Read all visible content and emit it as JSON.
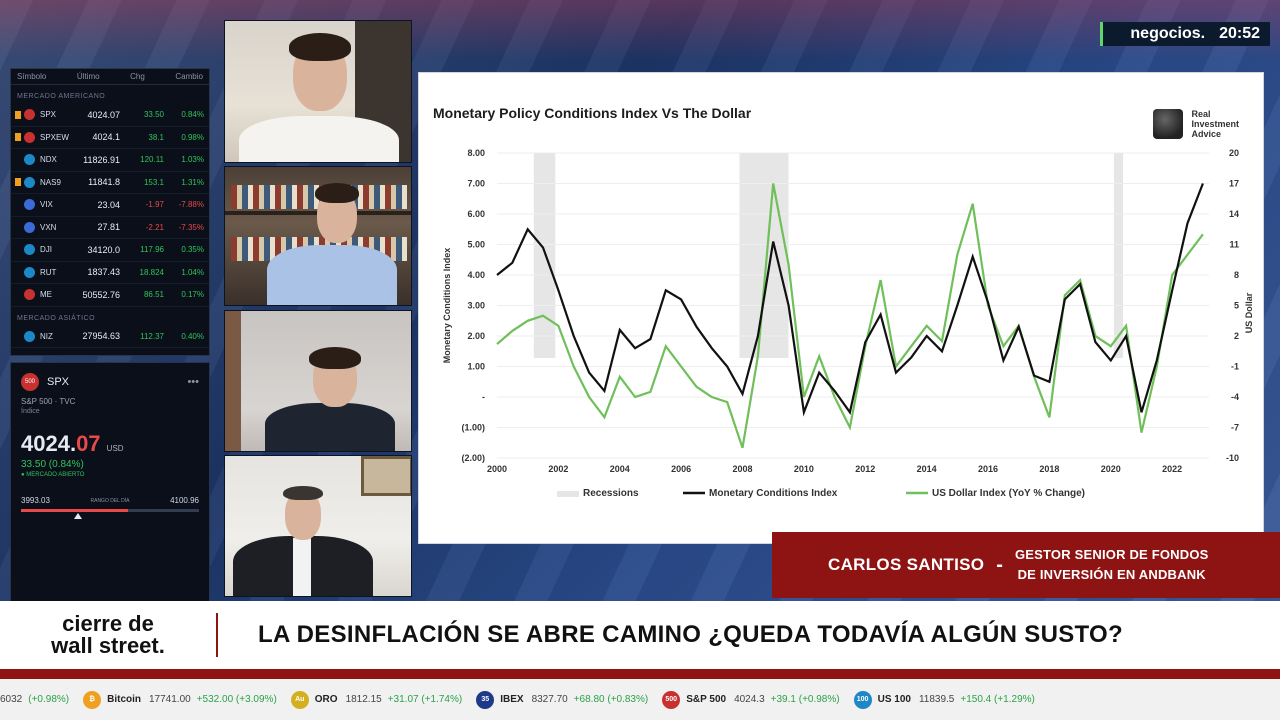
{
  "brand": {
    "name": "negocios.",
    "time": "20:52"
  },
  "tickers": {
    "headers": [
      "Símbolo",
      "Último",
      "Chg",
      "Cambio"
    ],
    "section_us": "MERCADO AMERICANO",
    "section_asia": "MERCADO ASIÁTICO",
    "rows": [
      {
        "sym": "SPX",
        "last": "4024.07",
        "chg": "33.50",
        "pct": "0.84%",
        "dir": "up",
        "flag": "#c7312f",
        "mark": "#f0a020"
      },
      {
        "sym": "SPXEW",
        "last": "4024.1",
        "chg": "38.1",
        "pct": "0.98%",
        "dir": "up",
        "flag": "#c7312f",
        "mark": "#f0a020"
      },
      {
        "sym": "NDX",
        "last": "11826.91",
        "chg": "120.11",
        "pct": "1.03%",
        "dir": "up",
        "flag": "#1e88c7",
        "mark": ""
      },
      {
        "sym": "NAS9",
        "last": "11841.8",
        "chg": "153.1",
        "pct": "1.31%",
        "dir": "up",
        "flag": "#1e88c7",
        "mark": "#f0a020"
      },
      {
        "sym": "VIX",
        "last": "23.04",
        "chg": "-1.97",
        "pct": "-7.88%",
        "dir": "down",
        "flag": "#3b6bd6",
        "mark": ""
      },
      {
        "sym": "VXN",
        "last": "27.81",
        "chg": "-2.21",
        "pct": "-7.35%",
        "dir": "down",
        "flag": "#3b6bd6",
        "mark": ""
      },
      {
        "sym": "DJI",
        "last": "34120.0",
        "chg": "117.96",
        "pct": "0.35%",
        "dir": "up",
        "flag": "#1e88c7",
        "mark": ""
      },
      {
        "sym": "RUT",
        "last": "1837.43",
        "chg": "18.824",
        "pct": "1.04%",
        "dir": "up",
        "flag": "#1e88c7",
        "mark": ""
      },
      {
        "sym": "ME",
        "last": "50552.76",
        "chg": "86.51",
        "pct": "0.17%",
        "dir": "up",
        "flag": "#c7312f",
        "mark": ""
      },
      {
        "sym": "NIZ",
        "last": "27954.63",
        "chg": "112.37",
        "pct": "0.40%",
        "dir": "up",
        "flag": "#1e88c7",
        "mark": ""
      }
    ]
  },
  "quote": {
    "badge": "500",
    "symbol": "SPX",
    "subtitle": "S&P 500 · TVC",
    "type": "Índice",
    "price_int": "4024.",
    "price_dec": "07",
    "currency": "USD",
    "change": "33.50 (0.84%)",
    "status": "● MERCADO ABIERTO",
    "range_low": "3993.03",
    "range_label": "RANGO DEL DÍA",
    "range_high": "4100.96",
    "range_fill": 0.6
  },
  "chart": {
    "title": "Monetary Policy Conditions Index Vs The Dollar",
    "logo_text": [
      "Real",
      "Investment",
      "Advice"
    ],
    "legend": [
      "Recessions",
      "Monetary Conditions Index",
      "US Dollar Index (YoY % Change)"
    ],
    "colors": {
      "mci": "#111111",
      "usd": "#6fbf5a",
      "recession": "#e6e6e6"
    }
  },
  "chart_data": {
    "type": "line",
    "ylabel": "Monetary Conditions Index",
    "y2label": "US Dollar",
    "x_ticks": [
      "2000",
      "2002",
      "2004",
      "2006",
      "2008",
      "2010",
      "2012",
      "2014",
      "2016",
      "2018",
      "2020",
      "2022"
    ],
    "y_ticks": [
      "8.00",
      "7.00",
      "6.00",
      "5.00",
      "4.00",
      "3.00",
      "2.00",
      "1.00",
      "-",
      "(1.00)",
      "(2.00)"
    ],
    "y2_ticks": [
      "20",
      "17",
      "14",
      "11",
      "8",
      "5",
      "2",
      "-1",
      "-4",
      "-7",
      "-10"
    ],
    "ylim": [
      -2,
      8
    ],
    "y2lim": [
      -10,
      20
    ],
    "xlim": [
      2000,
      2023.2
    ],
    "recessions": [
      [
        2001.2,
        2001.9
      ],
      [
        2007.9,
        2009.5
      ],
      [
        2020.1,
        2020.4
      ]
    ],
    "series": [
      {
        "name": "Monetary Conditions Index",
        "x": [
          2000,
          2000.5,
          2001,
          2001.5,
          2002,
          2002.5,
          2003,
          2003.5,
          2004,
          2004.5,
          2005,
          2005.5,
          2006,
          2006.5,
          2007,
          2007.5,
          2008,
          2008.5,
          2009,
          2009.5,
          2010,
          2010.5,
          2011,
          2011.5,
          2012,
          2012.5,
          2013,
          2013.5,
          2014,
          2014.5,
          2015,
          2015.5,
          2016,
          2016.5,
          2017,
          2017.5,
          2018,
          2018.5,
          2019,
          2019.5,
          2020,
          2020.5,
          2021,
          2021.5,
          2022,
          2022.5,
          2023
        ],
        "values": [
          4.0,
          4.4,
          5.5,
          4.9,
          3.5,
          2.0,
          0.8,
          0.2,
          2.2,
          1.6,
          1.9,
          3.5,
          3.2,
          2.3,
          1.6,
          1.0,
          0.1,
          2.0,
          5.1,
          3.0,
          -0.5,
          0.8,
          0.2,
          -0.5,
          1.8,
          2.7,
          0.8,
          1.3,
          2.0,
          1.5,
          3.0,
          4.6,
          3.1,
          1.2,
          2.3,
          0.7,
          0.5,
          3.2,
          3.7,
          1.8,
          1.2,
          2.0,
          -0.5,
          1.2,
          3.5,
          5.7,
          7.0
        ]
      },
      {
        "name": "US Dollar Index (YoY % Change)",
        "x": [
          2000,
          2000.5,
          2001,
          2001.5,
          2002,
          2002.5,
          2003,
          2003.5,
          2004,
          2004.5,
          2005,
          2005.5,
          2006,
          2006.5,
          2007,
          2007.5,
          2008,
          2008.5,
          2009,
          2009.5,
          2010,
          2010.5,
          2011,
          2011.5,
          2012,
          2012.5,
          2013,
          2013.5,
          2014,
          2014.5,
          2015,
          2015.5,
          2016,
          2016.5,
          2017,
          2017.5,
          2018,
          2018.5,
          2019,
          2019.5,
          2020,
          2020.5,
          2021,
          2021.5,
          2022,
          2022.5,
          2023
        ],
        "values": [
          1.2,
          2.5,
          3.5,
          4.0,
          3.0,
          -1.0,
          -4.0,
          -6.0,
          -2.0,
          -4.0,
          -3.5,
          1.0,
          -1.0,
          -3.0,
          -4.0,
          -4.5,
          -9.0,
          0.0,
          17.0,
          9.0,
          -4.0,
          0.0,
          -4.0,
          -7.0,
          1.0,
          7.5,
          -1.0,
          1.0,
          3.0,
          1.5,
          10.0,
          15.0,
          5.0,
          1.0,
          3.0,
          -2.0,
          -6.0,
          6.0,
          7.5,
          2.0,
          1.0,
          3.0,
          -7.5,
          -1.0,
          8.0,
          10.0,
          12.0
        ]
      }
    ]
  },
  "lower_third": {
    "name": "CARLOS SANTISO",
    "dash": "-",
    "role_line1": "GESTOR SENIOR DE FONDOS",
    "role_line2": "DE INVERSIÓN EN ANDBANK"
  },
  "headline_bar": {
    "show_line1": "cierre de",
    "show_line2": "wall street.",
    "headline": "LA DESINFLACIÓN SE ABRE CAMINO ¿QUEDA TODAVÍA ALGÚN SUSTO?"
  },
  "bottom_ticker": [
    {
      "icon": "",
      "name": "",
      "value": "6032",
      "change": "(+0.98%)",
      "color": "#2aa24a"
    },
    {
      "icon": "₿",
      "name": "Bitcoin",
      "value": "17741.00",
      "change": "+532.00 (+3.09%)",
      "color": "#f0a020"
    },
    {
      "icon": "Au",
      "name": "ORO",
      "value": "1812.15",
      "change": "+31.07 (+1.74%)",
      "color": "#d4b020"
    },
    {
      "icon": "35",
      "name": "IBEX",
      "value": "8327.70",
      "change": "+68.80 (+0.83%)",
      "color": "#1e3a8a"
    },
    {
      "icon": "500",
      "name": "S&P 500",
      "value": "4024.3",
      "change": "+39.1 (+0.98%)",
      "color": "#c7312f"
    },
    {
      "icon": "100",
      "name": "US 100",
      "value": "11839.5",
      "change": "+150.4 (+1.29%)",
      "color": "#1e88c7"
    }
  ]
}
